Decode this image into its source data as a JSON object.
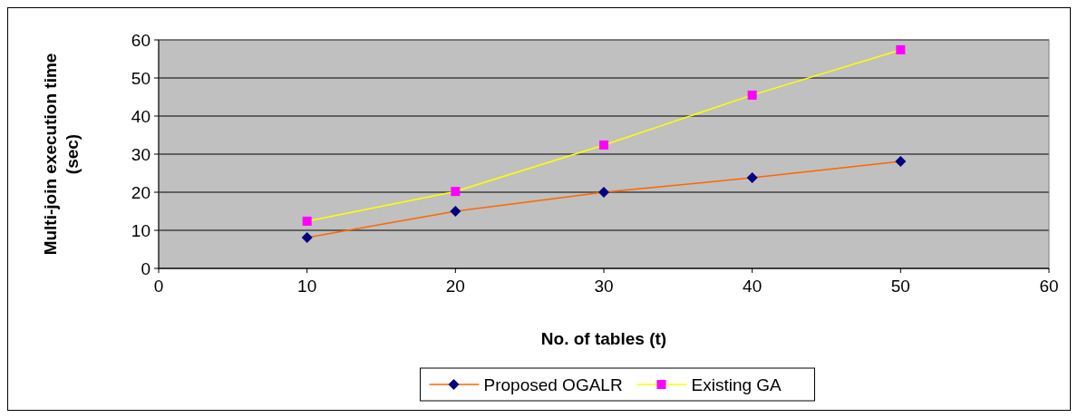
{
  "chart_data": {
    "type": "line",
    "xlabel": "No. of tables (t)",
    "ylabel": "Multi-join execution time (sec)",
    "x": [
      10,
      20,
      30,
      40,
      50
    ],
    "series": [
      {
        "name": "Proposed OGALR",
        "color": "#ff6600",
        "colors": [
          "#000080",
          "#000080",
          "#000080",
          "#000080",
          "#000080"
        ],
        "marker": "diamond",
        "values": [
          8.1,
          15,
          20,
          23.8,
          28.1
        ]
      },
      {
        "name": "Existing GA",
        "color": "#ffff00",
        "colors": [
          "#ff00ff",
          "#ff00ff",
          "#ff00ff",
          "#ff00ff",
          "#ff00ff"
        ],
        "marker": "square",
        "values": [
          12.4,
          20.2,
          32.4,
          45.5,
          57.4
        ]
      }
    ],
    "xlim": [
      0,
      60
    ],
    "xticks": [
      0,
      10,
      20,
      30,
      40,
      50,
      60
    ],
    "ylim": [
      0,
      60
    ],
    "yticks": [
      0,
      10,
      20,
      30,
      40,
      50,
      60
    ],
    "grid": "y",
    "legend": "bottom"
  }
}
